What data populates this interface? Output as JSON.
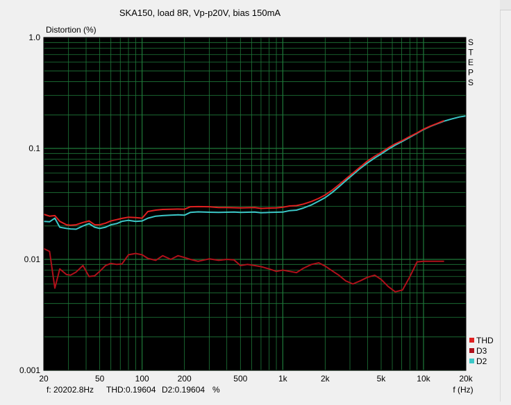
{
  "chart_data": {
    "type": "line",
    "title": "SKA150, load 8R, Vp-p20V, bias 150mA",
    "ylabel": "Distortion (%)",
    "xlabel": "f (Hz)",
    "xscale": "log",
    "yscale": "log",
    "xlim": [
      20,
      20000
    ],
    "ylim": [
      0.001,
      1.0
    ],
    "x_ticks": [
      {
        "value": 20,
        "label": "20"
      },
      {
        "value": 50,
        "label": "50"
      },
      {
        "value": 100,
        "label": "100"
      },
      {
        "value": 200,
        "label": "200"
      },
      {
        "value": 500,
        "label": "500"
      },
      {
        "value": 1000,
        "label": "1k"
      },
      {
        "value": 2000,
        "label": "2k"
      },
      {
        "value": 5000,
        "label": "5k"
      },
      {
        "value": 10000,
        "label": "10k"
      },
      {
        "value": 20000,
        "label": "20k"
      }
    ],
    "y_ticks": [
      {
        "value": 1.0,
        "label": "1.0"
      },
      {
        "value": 0.1,
        "label": "0.1"
      },
      {
        "value": 0.01,
        "label": "0.01"
      },
      {
        "value": 0.001,
        "label": "0.001"
      }
    ],
    "grid": true,
    "background": "#000000",
    "grid_color": "#1f7a3a",
    "side_label": "STEPS",
    "legend_position": "bottom-right",
    "series": [
      {
        "name": "D2",
        "color": "#3cc8c8",
        "x": [
          20,
          22,
          24,
          26,
          29,
          31,
          34,
          38,
          42,
          46,
          50,
          55,
          60,
          66,
          72,
          80,
          90,
          100,
          110,
          125,
          140,
          160,
          180,
          200,
          220,
          250,
          300,
          350,
          400,
          450,
          500,
          560,
          630,
          700,
          800,
          900,
          1000,
          1120,
          1250,
          1400,
          1600,
          1800,
          2000,
          2240,
          2500,
          2800,
          3150,
          3550,
          4000,
          4500,
          5000,
          5600,
          6300,
          7100,
          8000,
          9000,
          10000,
          11200,
          12500,
          14000,
          16000,
          18000,
          20000
        ],
        "y": [
          0.022,
          0.0218,
          0.0235,
          0.0195,
          0.019,
          0.0188,
          0.0187,
          0.02,
          0.021,
          0.0195,
          0.019,
          0.0195,
          0.0205,
          0.021,
          0.022,
          0.0225,
          0.022,
          0.0222,
          0.0235,
          0.0245,
          0.0248,
          0.025,
          0.0252,
          0.025,
          0.0265,
          0.0268,
          0.0266,
          0.0265,
          0.0266,
          0.0267,
          0.0265,
          0.0266,
          0.0267,
          0.0263,
          0.0265,
          0.0266,
          0.0267,
          0.0275,
          0.0278,
          0.029,
          0.031,
          0.0335,
          0.036,
          0.04,
          0.045,
          0.051,
          0.058,
          0.066,
          0.074,
          0.082,
          0.089,
          0.098,
          0.107,
          0.116,
          0.126,
          0.137,
          0.148,
          0.158,
          0.167,
          0.176,
          0.185,
          0.192,
          0.196
        ]
      },
      {
        "name": "THD",
        "color": "#e02020",
        "x": [
          20,
          22,
          24,
          26,
          29,
          31,
          34,
          38,
          42,
          46,
          50,
          55,
          60,
          66,
          72,
          80,
          90,
          100,
          110,
          125,
          140,
          160,
          180,
          200,
          220,
          250,
          300,
          350,
          400,
          450,
          500,
          560,
          630,
          700,
          800,
          900,
          1000,
          1120,
          1250,
          1400,
          1600,
          1800,
          2000,
          2240,
          2500,
          2800,
          3150,
          3550,
          4000,
          4500,
          5000,
          5600,
          6300,
          7100,
          8000,
          9000,
          10000,
          11200,
          12500,
          14000
        ],
        "y": [
          0.0255,
          0.0245,
          0.0248,
          0.022,
          0.0205,
          0.0203,
          0.0205,
          0.0215,
          0.0222,
          0.0205,
          0.0205,
          0.0212,
          0.0222,
          0.0228,
          0.0234,
          0.024,
          0.0238,
          0.0235,
          0.027,
          0.0278,
          0.0282,
          0.0283,
          0.0284,
          0.0283,
          0.0298,
          0.0299,
          0.0298,
          0.0293,
          0.0293,
          0.0292,
          0.0291,
          0.0292,
          0.0293,
          0.0288,
          0.029,
          0.0291,
          0.0295,
          0.0303,
          0.0305,
          0.0315,
          0.0333,
          0.0355,
          0.038,
          0.042,
          0.047,
          0.053,
          0.06,
          0.068,
          0.077,
          0.085,
          0.092,
          0.101,
          0.11,
          0.118,
          0.128,
          0.138,
          0.149,
          0.159,
          0.168,
          0.178
        ]
      },
      {
        "name": "D3",
        "color": "#b0101a",
        "x": [
          20,
          22,
          24,
          26,
          29,
          31,
          34,
          38,
          42,
          46,
          50,
          55,
          60,
          66,
          72,
          80,
          90,
          100,
          110,
          125,
          140,
          160,
          180,
          200,
          220,
          250,
          300,
          350,
          400,
          450,
          500,
          560,
          630,
          700,
          800,
          900,
          1000,
          1120,
          1250,
          1400,
          1600,
          1800,
          2000,
          2240,
          2500,
          2800,
          3150,
          3550,
          4000,
          4500,
          5000,
          5600,
          6300,
          7100,
          8000,
          9000,
          10000,
          11200,
          12500,
          14000
        ],
        "y": [
          0.0125,
          0.0118,
          0.0055,
          0.0082,
          0.0073,
          0.0072,
          0.0077,
          0.0088,
          0.007,
          0.0071,
          0.0078,
          0.0088,
          0.0092,
          0.009,
          0.0091,
          0.011,
          0.0113,
          0.011,
          0.0102,
          0.0098,
          0.0108,
          0.01,
          0.0108,
          0.0104,
          0.01,
          0.0096,
          0.0101,
          0.0098,
          0.01,
          0.0099,
          0.0088,
          0.009,
          0.0088,
          0.0086,
          0.0082,
          0.0078,
          0.008,
          0.0078,
          0.0076,
          0.0083,
          0.009,
          0.0093,
          0.0087,
          0.0079,
          0.0072,
          0.0064,
          0.006,
          0.0064,
          0.0069,
          0.0072,
          0.0066,
          0.0057,
          0.0051,
          0.0053,
          0.007,
          0.0095,
          0.0096,
          0.0096,
          0.0096,
          0.0096
        ]
      }
    ]
  },
  "status": {
    "freq": "f: 20202.8Hz",
    "thd": "THD:0.19604",
    "d2": "D2:0.19604",
    "unit": "%"
  }
}
